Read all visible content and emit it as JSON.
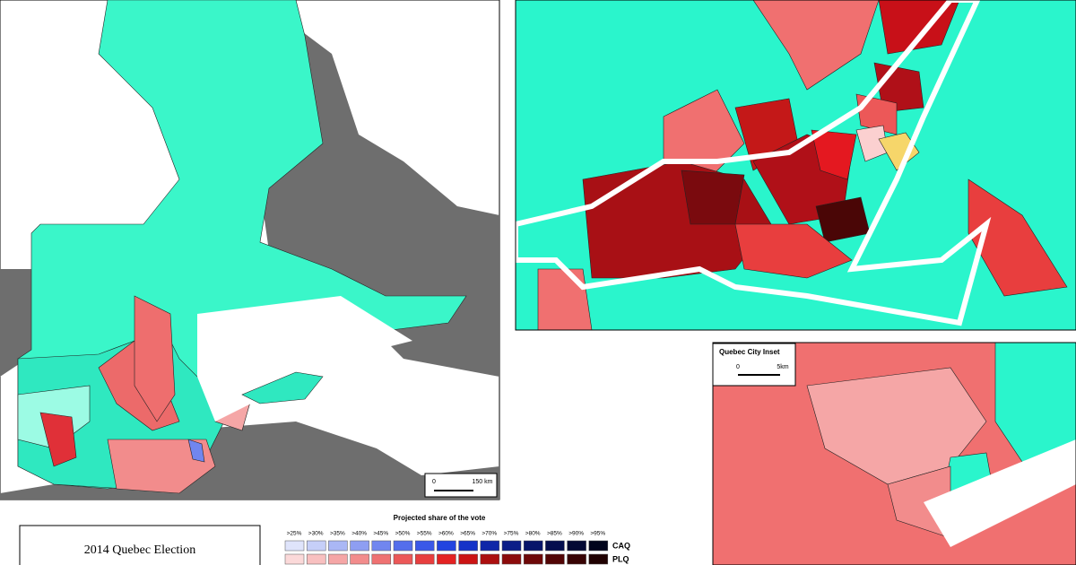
{
  "main_map": {
    "scale_start": "0",
    "scale_end": "150 km"
  },
  "inset": {
    "title": "Quebec City Inset",
    "scale_start": "0",
    "scale_end": "5km"
  },
  "title_box": {
    "title": "2014 Quebec Election"
  },
  "legend": {
    "title": "Projected share of the vote",
    "thresholds": [
      ">25%",
      ">30%",
      ">35%",
      ">40%",
      ">45%",
      ">50%",
      ">55%",
      ">60%",
      ">65%",
      ">70%",
      ">75%",
      ">80%",
      ">85%",
      ">90%",
      ">95%"
    ],
    "rows": [
      {
        "party": "CAQ",
        "colors": [
          "#dfe4fb",
          "#c6cff8",
          "#aab7f5",
          "#8e9ef2",
          "#7186ef",
          "#546eec",
          "#3a58e8",
          "#2244e0",
          "#1533c8",
          "#0f27a8",
          "#0b1d88",
          "#08156a",
          "#050e4e",
          "#030934",
          "#01041c"
        ]
      },
      {
        "party": "PLQ",
        "colors": [
          "#fbd9d9",
          "#f8c0c0",
          "#f5a6a6",
          "#f28c8c",
          "#ef7272",
          "#ec5858",
          "#e83e3e",
          "#e42222",
          "#cc1414",
          "#ac0f0f",
          "#8c0b0b",
          "#6e0808",
          "#520505",
          "#380303",
          "#200101"
        ]
      }
    ]
  }
}
